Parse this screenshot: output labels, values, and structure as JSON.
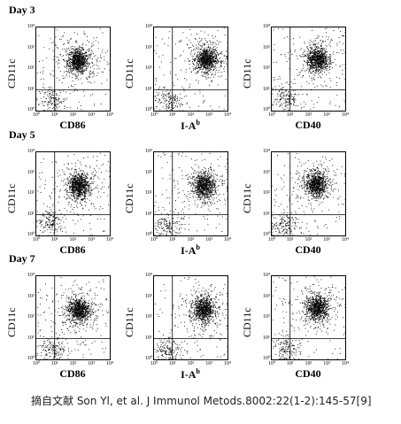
{
  "days": [
    "Day 3",
    "Day 5",
    "Day 7"
  ],
  "y_axis_label": "CD11c",
  "x_markers": [
    "CD86",
    "I-A",
    "CD40"
  ],
  "x_marker_superscripts": [
    "",
    "b",
    ""
  ],
  "tick_labels": [
    "10⁰",
    "10¹",
    "10²",
    "10³",
    "10⁴"
  ],
  "caption": "摘自文献 Son Yl, et al. J Immunol Metods.8002:22(1-2):145-57[9]",
  "chart_data": {
    "type": "scatter",
    "xscale": "log",
    "yscale": "log",
    "xlim": [
      1,
      10000
    ],
    "ylim": [
      1,
      10000
    ],
    "ylabel": "CD11c",
    "quadrant_gates": true,
    "panels": [
      {
        "day": "Day 3",
        "xlabel": "CD86",
        "dense_center": [
          180,
          250
        ],
        "secondary_center": [
          8,
          3
        ]
      },
      {
        "day": "Day 3",
        "xlabel": "I-Ab",
        "dense_center": [
          700,
          300
        ],
        "secondary_center": [
          6,
          3
        ]
      },
      {
        "day": "Day 3",
        "xlabel": "CD40",
        "dense_center": [
          300,
          300
        ],
        "secondary_center": [
          6,
          4
        ]
      },
      {
        "day": "Day 5",
        "xlabel": "CD86",
        "dense_center": [
          200,
          250
        ],
        "secondary_center": [
          6,
          5
        ]
      },
      {
        "day": "Day 5",
        "xlabel": "I-Ab",
        "dense_center": [
          500,
          250
        ],
        "secondary_center": [
          6,
          3
        ]
      },
      {
        "day": "Day 5",
        "xlabel": "CD40",
        "dense_center": [
          250,
          300
        ],
        "secondary_center": [
          4,
          3
        ]
      },
      {
        "day": "Day 7",
        "xlabel": "CD86",
        "dense_center": [
          200,
          250
        ],
        "secondary_center": [
          8,
          3
        ]
      },
      {
        "day": "Day 7",
        "xlabel": "I-Ab",
        "dense_center": [
          500,
          250
        ],
        "secondary_center": [
          6,
          3
        ]
      },
      {
        "day": "Day 7",
        "xlabel": "CD40",
        "dense_center": [
          300,
          300
        ],
        "secondary_center": [
          6,
          3
        ]
      }
    ]
  }
}
